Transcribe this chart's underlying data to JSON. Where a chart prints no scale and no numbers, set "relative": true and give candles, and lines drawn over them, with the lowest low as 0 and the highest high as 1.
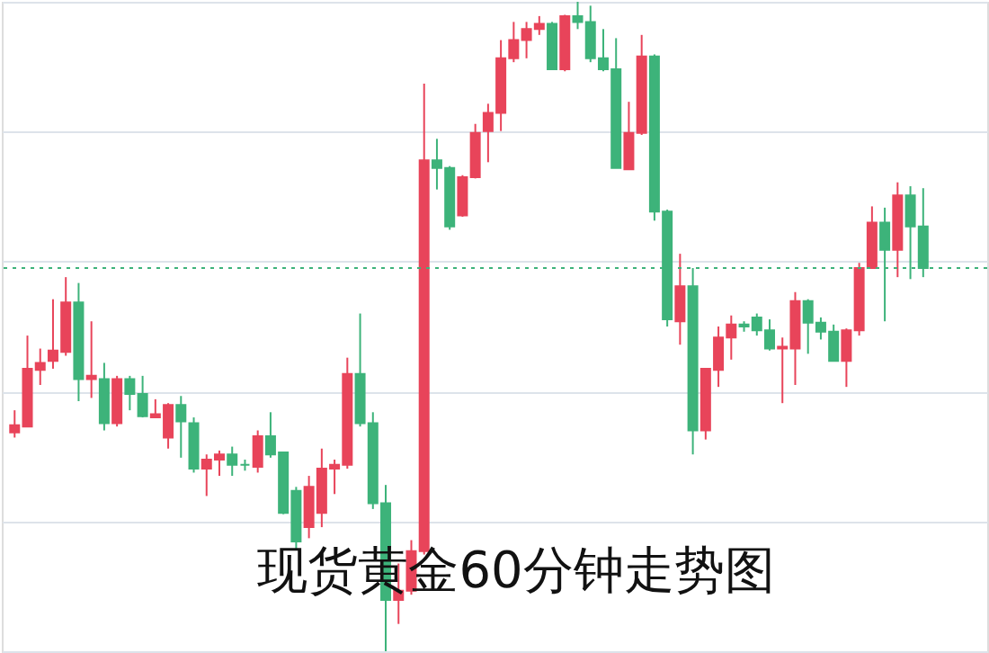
{
  "chart_data": {
    "type": "candlestick",
    "title": "现货黄金60分钟走势图",
    "relative": true,
    "grid": "y",
    "categories": [
      null,
      null,
      null,
      null,
      null,
      null,
      null,
      null,
      null,
      null,
      null,
      null,
      null,
      null,
      null,
      null,
      null,
      null,
      null,
      null,
      null,
      null,
      null,
      null,
      null,
      null,
      null,
      null,
      null,
      null,
      null,
      null,
      null,
      null,
      null,
      null,
      null,
      null,
      null,
      null,
      null,
      null,
      null,
      null,
      null,
      null,
      null,
      null,
      null,
      null,
      null,
      null,
      null,
      null,
      null,
      null,
      null,
      null,
      null,
      null,
      null,
      null,
      null,
      null,
      null,
      null,
      null,
      null,
      null,
      null,
      null,
      null
    ],
    "ohlc": [
      [
        0.337,
        0.371,
        0.329,
        0.348
      ],
      [
        0.346,
        0.486,
        0.346,
        0.435
      ],
      [
        0.433,
        0.466,
        0.41,
        0.444
      ],
      [
        0.447,
        0.542,
        0.435,
        0.463
      ],
      [
        0.461,
        0.576,
        0.455,
        0.537
      ],
      [
        0.537,
        0.567,
        0.385,
        0.419
      ],
      [
        0.419,
        0.508,
        0.39,
        0.424
      ],
      [
        0.419,
        0.444,
        0.34,
        0.351
      ],
      [
        0.351,
        0.424,
        0.346,
        0.419
      ],
      [
        0.419,
        0.424,
        0.371,
        0.396
      ],
      [
        0.396,
        0.424,
        0.36,
        0.362
      ],
      [
        0.36,
        0.388,
        0.36,
        0.365
      ],
      [
        0.329,
        0.382,
        0.312,
        0.379
      ],
      [
        0.379,
        0.393,
        0.298,
        0.354
      ],
      [
        0.351,
        0.36,
        0.275,
        0.281
      ],
      [
        0.281,
        0.303,
        0.239,
        0.295
      ],
      [
        0.295,
        0.309,
        0.27,
        0.303
      ],
      [
        0.303,
        0.315,
        0.27,
        0.287
      ],
      [
        0.287,
        0.295,
        0.278,
        0.287
      ],
      [
        0.284,
        0.34,
        0.275,
        0.331
      ],
      [
        0.331,
        0.368,
        0.298,
        0.303
      ],
      [
        0.306,
        0.306,
        0.211,
        0.213
      ],
      [
        0.247,
        0.253,
        0.157,
        0.169
      ],
      [
        0.191,
        0.27,
        0.174,
        0.253
      ],
      [
        0.213,
        0.312,
        0.191,
        0.281
      ],
      [
        0.281,
        0.295,
        0.242,
        0.287
      ],
      [
        0.287,
        0.452,
        0.281,
        0.427
      ],
      [
        0.427,
        0.52,
        0.346,
        0.351
      ],
      [
        0.351,
        0.368,
        0.219,
        0.228
      ],
      [
        0.228,
        0.256,
        0.0,
        0.079
      ],
      [
        0.079,
        0.135,
        0.042,
        0.093
      ],
      [
        0.093,
        0.171,
        0.087,
        0.154
      ],
      [
        0.154,
        0.874,
        0.149,
        0.756
      ],
      [
        0.756,
        0.789,
        0.711,
        0.744
      ],
      [
        0.744,
        0.747,
        0.649,
        0.654
      ],
      [
        0.671,
        0.733,
        0.669,
        0.73
      ],
      [
        0.73,
        0.812,
        0.728,
        0.798
      ],
      [
        0.801,
        0.843,
        0.753,
        0.829
      ],
      [
        0.829,
        0.941,
        0.801,
        0.913
      ],
      [
        0.913,
        0.969,
        0.907,
        0.941
      ],
      [
        0.941,
        0.969,
        0.913,
        0.958
      ],
      [
        0.958,
        0.978,
        0.949,
        0.966
      ],
      [
        0.966,
        0.969,
        0.896,
        0.896
      ],
      [
        0.896,
        0.98,
        0.893,
        0.978
      ],
      [
        0.978,
        1.0,
        0.958,
        0.969
      ],
      [
        0.969,
        0.994,
        0.907,
        0.913
      ],
      [
        0.913,
        0.958,
        0.893,
        0.896
      ],
      [
        0.896,
        0.944,
        0.744,
        0.744
      ],
      [
        0.742,
        0.846,
        0.742,
        0.798
      ],
      [
        0.798,
        0.949,
        0.795,
        0.916
      ],
      [
        0.916,
        0.919,
        0.663,
        0.677
      ],
      [
        0.677,
        0.68,
        0.5,
        0.511
      ],
      [
        0.508,
        0.612,
        0.472,
        0.562
      ],
      [
        0.562,
        0.59,
        0.303,
        0.34
      ],
      [
        0.34,
        0.435,
        0.326,
        0.435
      ],
      [
        0.433,
        0.5,
        0.407,
        0.483
      ],
      [
        0.483,
        0.517,
        0.449,
        0.503
      ],
      [
        0.503,
        0.508,
        0.492,
        0.5
      ],
      [
        0.514,
        0.52,
        0.486,
        0.494
      ],
      [
        0.494,
        0.511,
        0.463,
        0.466
      ],
      [
        0.466,
        0.483,
        0.382,
        0.469
      ],
      [
        0.466,
        0.553,
        0.41,
        0.539
      ],
      [
        0.539,
        0.542,
        0.458,
        0.506
      ],
      [
        0.506,
        0.514,
        0.48,
        0.492
      ],
      [
        0.492,
        0.503,
        0.447,
        0.447
      ],
      [
        0.447,
        0.497,
        0.407,
        0.494
      ],
      [
        0.494,
        0.598,
        0.486,
        0.59
      ],
      [
        0.59,
        0.685,
        0.59,
        0.66
      ],
      [
        0.66,
        0.683,
        0.508,
        0.618
      ],
      [
        0.618,
        0.722,
        0.576,
        0.702
      ],
      [
        0.702,
        0.716,
        0.573,
        0.654
      ],
      [
        0.654,
        0.713,
        0.576,
        0.59
      ]
    ],
    "colors": [
      "#e8445a",
      "#e8445a",
      "#e8445a",
      "#e8445a",
      "#e8445a",
      "#3db37a",
      "#e8445a",
      "#3db37a",
      "#e8445a",
      "#3db37a",
      "#3db37a",
      "#e8445a",
      "#e8445a",
      "#3db37a",
      "#3db37a",
      "#e8445a",
      "#e8445a",
      "#3db37a",
      "#3db37a",
      "#e8445a",
      "#3db37a",
      "#3db37a",
      "#3db37a",
      "#e8445a",
      "#e8445a",
      "#e8445a",
      "#e8445a",
      "#3db37a",
      "#3db37a",
      "#3db37a",
      "#e8445a",
      "#e8445a",
      "#e8445a",
      "#3db37a",
      "#3db37a",
      "#e8445a",
      "#e8445a",
      "#e8445a",
      "#e8445a",
      "#e8445a",
      "#e8445a",
      "#e8445a",
      "#3db37a",
      "#e8445a",
      "#3db37a",
      "#3db37a",
      "#3db37a",
      "#3db37a",
      "#e8445a",
      "#e8445a",
      "#3db37a",
      "#3db37a",
      "#e8445a",
      "#3db37a",
      "#e8445a",
      "#e8445a",
      "#e8445a",
      "#3db37a",
      "#3db37a",
      "#3db37a",
      "#e8445a",
      "#e8445a",
      "#3db37a",
      "#3db37a",
      "#3db37a",
      "#e8445a",
      "#e8445a",
      "#e8445a",
      "#3db37a",
      "#e8445a",
      "#3db37a",
      "#3db37a"
    ],
    "ref_lines": [
      {
        "axis": "y",
        "value": 0.59,
        "color": "#3db37a",
        "line_style": "dotted"
      }
    ]
  }
}
